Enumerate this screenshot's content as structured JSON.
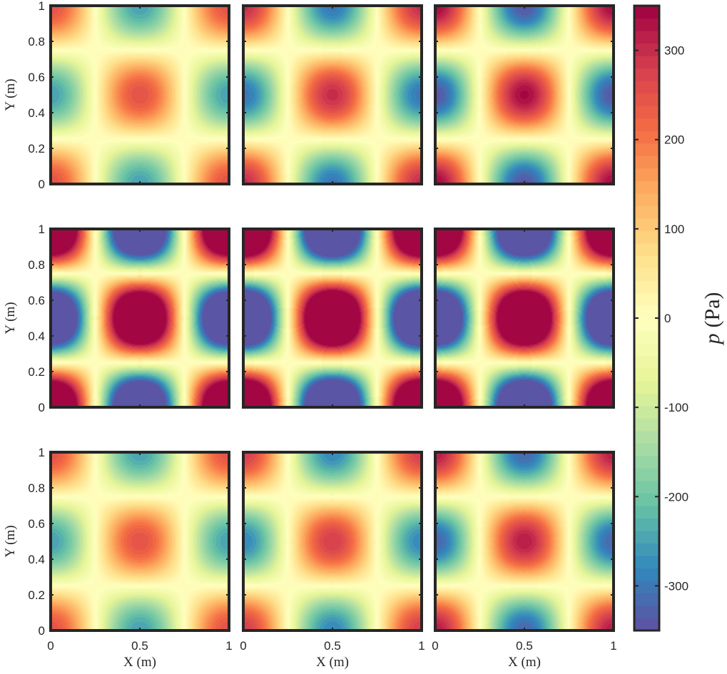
{
  "chart_data": {
    "type": "heatmap",
    "layout": {
      "rows": 3,
      "cols": 3
    },
    "field": "cos(2*pi*x)*cos(2*pi*y)",
    "xlabel": "X (m)",
    "ylabel": "Y (m)",
    "xlim": [
      0,
      1
    ],
    "ylim": [
      0,
      1
    ],
    "x_ticks": [
      "0",
      "0.5",
      "1"
    ],
    "y_ticks": [
      "0",
      "0.2",
      "0.4",
      "0.6",
      "0.8",
      "1"
    ],
    "colorbar": {
      "label_italic": "p",
      "label_unit": "(Pa)",
      "limits": [
        -350,
        350
      ],
      "ticks": [
        "300",
        "200",
        "100",
        "0",
        "-100",
        "-200",
        "-300"
      ],
      "tick_values": [
        300,
        200,
        100,
        0,
        -100,
        -200,
        -300
      ],
      "levels": 50,
      "colormap": [
        "#5e4fa2",
        "#3288bd",
        "#66c2a5",
        "#abdda4",
        "#e6f598",
        "#ffffbf",
        "#fee08b",
        "#fdae61",
        "#f46d43",
        "#d53e4f",
        "#9e0142"
      ]
    },
    "panels": [
      {
        "row": 1,
        "col": 1,
        "amplitude": 250
      },
      {
        "row": 1,
        "col": 2,
        "amplitude": 300
      },
      {
        "row": 1,
        "col": 3,
        "amplitude": 340
      },
      {
        "row": 2,
        "col": 1,
        "amplitude": 560
      },
      {
        "row": 2,
        "col": 2,
        "amplitude": 600
      },
      {
        "row": 2,
        "col": 3,
        "amplitude": 580
      },
      {
        "row": 3,
        "col": 1,
        "amplitude": 250
      },
      {
        "row": 3,
        "col": 2,
        "amplitude": 280
      },
      {
        "row": 3,
        "col": 3,
        "amplitude": 320
      }
    ]
  }
}
